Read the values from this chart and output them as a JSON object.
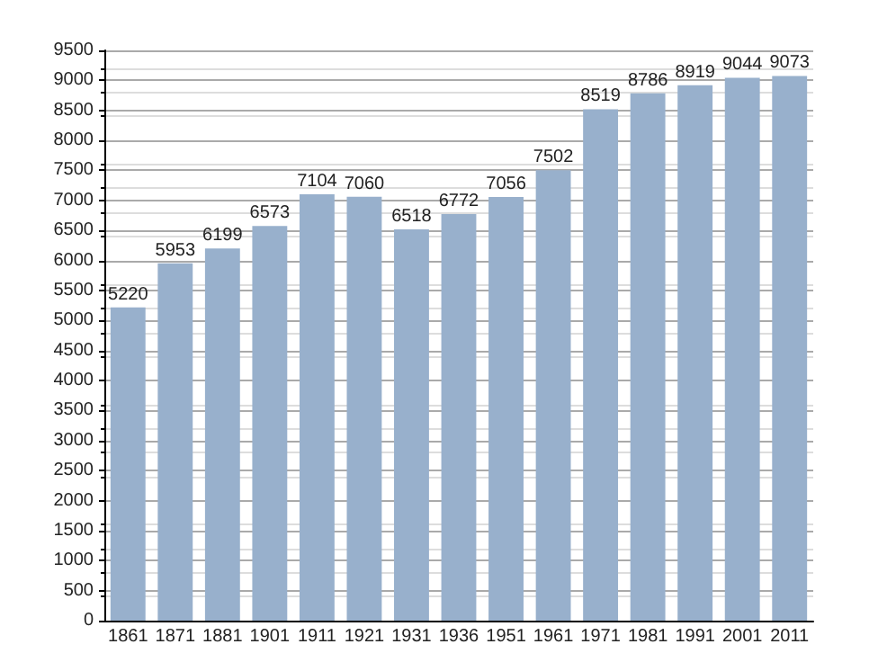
{
  "chart_data": {
    "type": "bar",
    "categories": [
      "1861",
      "1871",
      "1881",
      "1901",
      "1911",
      "1921",
      "1931",
      "1936",
      "1951",
      "1961",
      "1971",
      "1981",
      "1991",
      "2001",
      "2011"
    ],
    "values": [
      5220,
      5953,
      6199,
      6573,
      7104,
      7060,
      6518,
      6772,
      7056,
      7502,
      8519,
      8786,
      8919,
      9044,
      9073
    ],
    "color": "#98b0cc",
    "ylim": [
      0,
      9500
    ],
    "yticks": [
      0,
      500,
      1000,
      1500,
      2000,
      2500,
      3000,
      3500,
      4000,
      4500,
      5000,
      5500,
      6000,
      6500,
      7000,
      7500,
      8000,
      8500,
      9000,
      9500
    ],
    "grid": "y",
    "data_labels": true
  }
}
